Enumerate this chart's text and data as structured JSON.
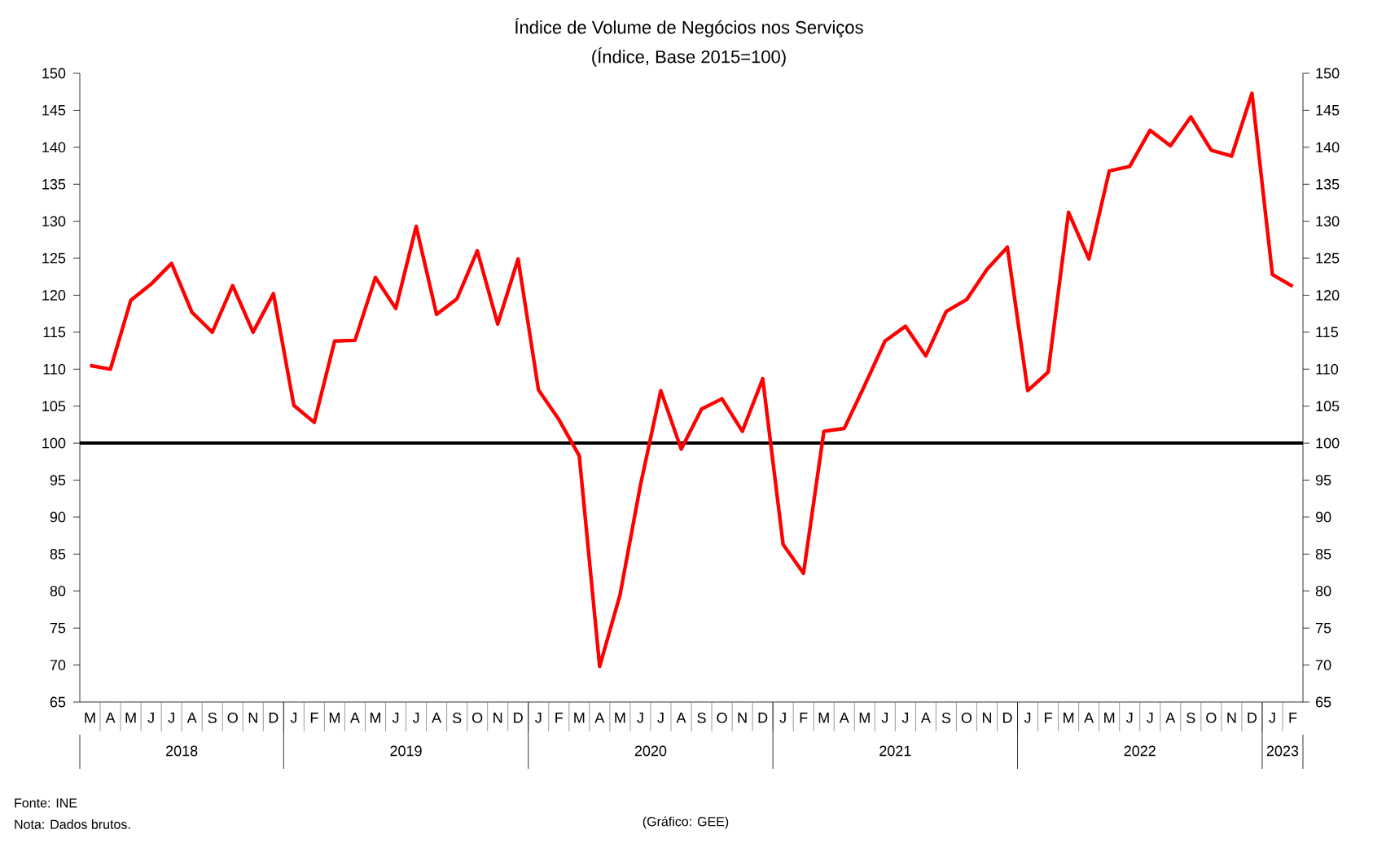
{
  "chart_data": {
    "type": "line",
    "title": "Índice de Volume de Negócios nos Serviços",
    "subtitle": "(Índice, Base 2015=100)",
    "categories": [
      "M",
      "A",
      "M",
      "J",
      "J",
      "A",
      "S",
      "O",
      "N",
      "D",
      "J",
      "F",
      "M",
      "A",
      "M",
      "J",
      "J",
      "A",
      "S",
      "O",
      "N",
      "D",
      "J",
      "F",
      "M",
      "A",
      "M",
      "J",
      "J",
      "A",
      "S",
      "O",
      "N",
      "D",
      "J",
      "F",
      "M",
      "A",
      "M",
      "J",
      "J",
      "A",
      "S",
      "O",
      "N",
      "D",
      "J",
      "F",
      "M",
      "A",
      "M",
      "J",
      "J",
      "A",
      "S",
      "O",
      "N",
      "D",
      "J",
      "F"
    ],
    "series": [
      {
        "color": "#ff0000",
        "values": [
          110.5,
          110,
          119.3,
          121.5,
          124.3,
          117.7,
          115,
          121.3,
          115,
          120.2,
          105.1,
          102.8,
          113.8,
          113.9,
          122.4,
          118.2,
          129.3,
          117.4,
          119.5,
          126,
          116.1,
          124.9,
          107.2,
          103.2,
          98.3,
          69.8,
          79.5,
          94.3,
          107.1,
          99.2,
          104.6,
          106,
          101.6,
          108.7,
          86.3,
          82.4,
          101.6,
          102,
          107.8,
          113.8,
          115.8,
          111.8,
          117.8,
          119.4,
          123.5,
          126.5,
          107.1,
          109.6,
          131.2,
          124.9,
          136.8,
          137.4,
          142.3,
          140.2,
          144.1,
          139.6,
          138.8,
          147.3,
          122.8,
          121.2
        ]
      }
    ],
    "ylim": [
      65,
      150
    ],
    "yticks": [
      65,
      70,
      75,
      80,
      85,
      90,
      95,
      100,
      105,
      110,
      115,
      120,
      125,
      130,
      135,
      140,
      145,
      150
    ],
    "y2lim": [
      65,
      150
    ],
    "y2ticks": [
      65,
      70,
      75,
      80,
      85,
      90,
      95,
      100,
      105,
      110,
      115,
      120,
      125,
      130,
      135,
      140,
      145,
      150
    ],
    "marker": "none",
    "line_style": "solid",
    "ref_lines": [
      {
        "axis": "y",
        "value": 100,
        "color": "#000000"
      }
    ],
    "annotations": [
      "2018",
      "2019",
      "2020",
      "2021",
      "2022",
      "2023",
      "Fonte: INE",
      "Nota: Dados brutos.",
      "(Gráfico: GEE)"
    ]
  }
}
